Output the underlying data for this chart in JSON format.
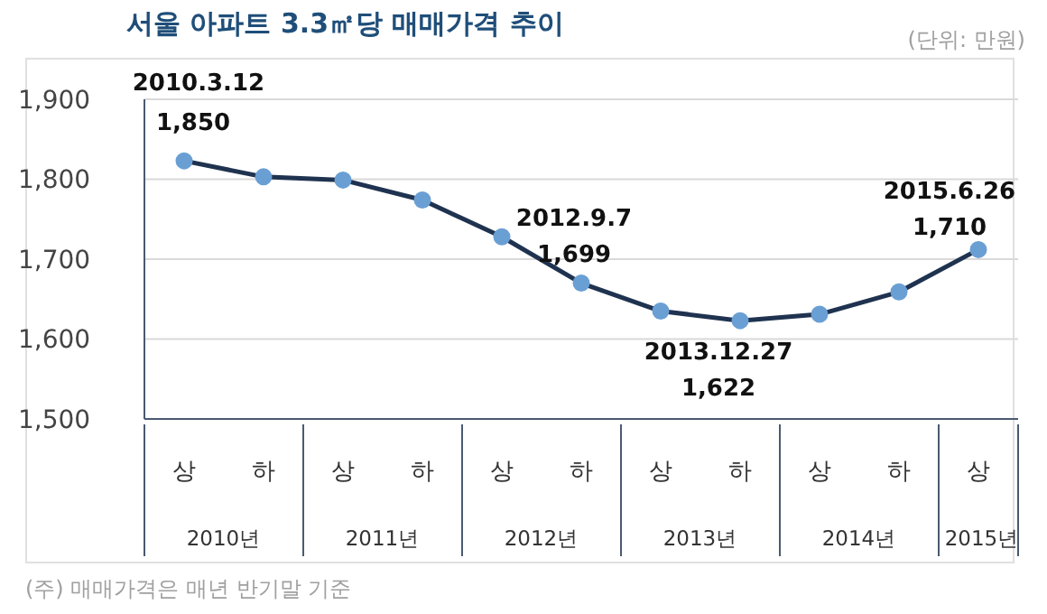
{
  "chart_data": {
    "type": "line",
    "title": "서울 아파트 3.3㎡당 매매가격 추이",
    "subtitle": "(단위: 만원)",
    "categories": [
      "상",
      "하",
      "상",
      "하",
      "상",
      "하",
      "상",
      "하",
      "상",
      "하",
      "상"
    ],
    "series": [
      {
        "color": "#1f3350",
        "values": [
          1823,
          1803,
          1799,
          1774,
          1728,
          1670,
          1635,
          1623,
          1631,
          1659,
          1712
        ]
      }
    ],
    "ylim": [
      1500,
      1900
    ],
    "yticks": [
      {
        "value": 1500,
        "label": "1,500"
      },
      {
        "value": 1600,
        "label": "1,600"
      },
      {
        "value": 1700,
        "label": "1,700"
      },
      {
        "value": 1800,
        "label": "1,800"
      },
      {
        "value": 1900,
        "label": "1,900"
      }
    ],
    "grid": "y",
    "marker": "circle",
    "line_style": "solid",
    "annotations": [
      "2010.3.12",
      "1,850",
      "2012.9.7",
      "1,699",
      "2013.12.27",
      "1,622",
      "2015.6.26",
      "1,710",
      "2010년",
      "2011년",
      "2012년",
      "2013년",
      "2014년",
      "2015년",
      "(주) 매매가격은 매년 반기말 기준"
    ]
  }
}
